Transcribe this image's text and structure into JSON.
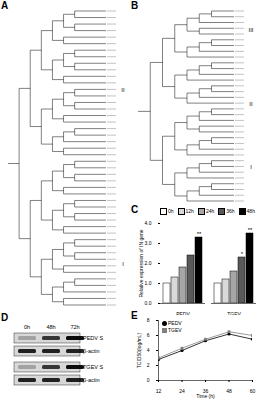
{
  "figure": {
    "A": {
      "label": "A",
      "clades": [
        "II",
        "I"
      ]
    },
    "B": {
      "label": "B",
      "clades": [
        "III",
        "II",
        "I"
      ]
    },
    "C": {
      "label": "C"
    },
    "D": {
      "label": "D",
      "timepoints": [
        "0h",
        "48h",
        "72h"
      ],
      "rows": [
        "PEDV S",
        "β-actin",
        "TGEV S",
        "β-actin"
      ]
    },
    "E": {
      "label": "E"
    }
  },
  "chart_data": [
    {
      "type": "bar",
      "y_label": "Relative expression of IN gene",
      "categories": [
        "PEDV",
        "TGEV"
      ],
      "series": [
        {
          "name": "0h",
          "color": "#ffffff",
          "values": [
            1,
            1
          ]
        },
        {
          "name": "12h",
          "color": "#d9d9d9",
          "values": [
            1.3,
            1.2
          ]
        },
        {
          "name": "24h",
          "color": "#a6a6a6",
          "values": [
            1.8,
            1.6
          ]
        },
        {
          "name": "36h",
          "color": "#595959",
          "values": [
            2.4,
            2.3
          ]
        },
        {
          "name": "48h",
          "color": "#000000",
          "values": [
            3.3,
            3.5
          ]
        }
      ],
      "annotations": [
        {
          "category": "PEDV",
          "series": "48h",
          "text": "**"
        },
        {
          "category": "TGEV",
          "series": "36h",
          "text": "*"
        },
        {
          "category": "TGEV",
          "series": "48h",
          "text": "**"
        }
      ],
      "ylim": [
        0,
        4
      ],
      "yticks": [
        0,
        1,
        2,
        3,
        4
      ],
      "legend": "top-left"
    },
    {
      "type": "line",
      "x_label": "Time (h)",
      "y_label": "TCID50(log/mL)",
      "x": [
        12,
        24,
        36,
        48,
        60
      ],
      "series": [
        {
          "name": "PEDV",
          "color": "#000000",
          "marker": "circle",
          "values": [
            2.8,
            4,
            5.3,
            6.2,
            5.5
          ]
        },
        {
          "name": "TGEV",
          "color": "#808080",
          "marker": "square",
          "values": [
            3,
            4.3,
            5.5,
            6.5,
            6
          ]
        }
      ],
      "xlim": [
        12,
        60
      ],
      "xticks": [
        12,
        24,
        36,
        48,
        60
      ],
      "ylim": [
        0,
        8
      ],
      "yticks": [
        0,
        2,
        4,
        6,
        8
      ],
      "legend": "top-left"
    }
  ]
}
